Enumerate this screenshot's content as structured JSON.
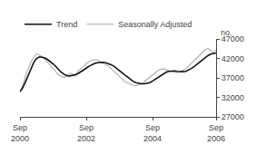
{
  "chart_data": {
    "type": "line",
    "ylabel": "no.",
    "categories": [
      "Sep\n2000",
      null,
      null,
      null,
      null,
      null,
      null,
      null,
      null,
      null,
      null,
      null,
      null,
      null,
      null,
      null,
      null,
      null,
      null,
      null,
      null,
      null,
      null,
      null,
      "Sep\n2002",
      null,
      null,
      null,
      null,
      null,
      null,
      null,
      null,
      null,
      null,
      null,
      null,
      null,
      null,
      null,
      null,
      null,
      null,
      null,
      null,
      null,
      null,
      null,
      "Sep\n2004",
      null,
      null,
      null,
      null,
      null,
      null,
      null,
      null,
      null,
      null,
      null,
      null,
      null,
      null,
      null,
      null,
      null,
      null,
      null,
      null,
      null,
      null,
      "Sep\n2006"
    ],
    "series": [
      {
        "name": "Seasonally Adjusted",
        "color": "#aaaaaa",
        "values": [
          33200,
          35000,
          37500,
          39500,
          41200,
          42300,
          43200,
          42900,
          42500,
          41800,
          41000,
          40200,
          39300,
          38500,
          37800,
          37400,
          37100,
          37600,
          38200,
          38000,
          37500,
          38800,
          39500,
          40000,
          40600,
          41200,
          41500,
          41700,
          41600,
          41200,
          40800,
          40400,
          40000,
          39400,
          38700,
          38000,
          37200,
          36500,
          36000,
          35700,
          35300,
          35100,
          35000,
          35200,
          35500,
          36000,
          36600,
          37200,
          37800,
          38400,
          38900,
          39200,
          39300,
          39100,
          38900,
          38700,
          38400,
          38300,
          38500,
          38900,
          39400,
          40000,
          40700,
          41400,
          42200,
          43000,
          43600,
          44200,
          44600,
          44000,
          43500,
          44200
        ]
      },
      {
        "name": "Trend",
        "color": "#111111",
        "values": [
          33500,
          34500,
          36000,
          37800,
          39500,
          41000,
          42000,
          42400,
          42300,
          42100,
          41700,
          41200,
          40600,
          39900,
          39100,
          38400,
          37900,
          37600,
          37500,
          37600,
          37800,
          38100,
          38500,
          39000,
          39500,
          40000,
          40400,
          40700,
          40900,
          41000,
          41000,
          40900,
          40700,
          40400,
          40000,
          39500,
          38900,
          38300,
          37700,
          37100,
          36600,
          36100,
          35800,
          35600,
          35500,
          35500,
          35600,
          35800,
          36200,
          36700,
          37200,
          37700,
          38100,
          38500,
          38700,
          38800,
          38800,
          38700,
          38600,
          38600,
          38700,
          39000,
          39400,
          39900,
          40500,
          41100,
          41700,
          42200,
          42700,
          43100,
          43300,
          43400
        ]
      }
    ],
    "ylim": [
      27000,
      47000
    ],
    "yticks": [
      27000,
      32000,
      37000,
      42000,
      47000
    ],
    "grid": false,
    "legend": "upper left"
  }
}
